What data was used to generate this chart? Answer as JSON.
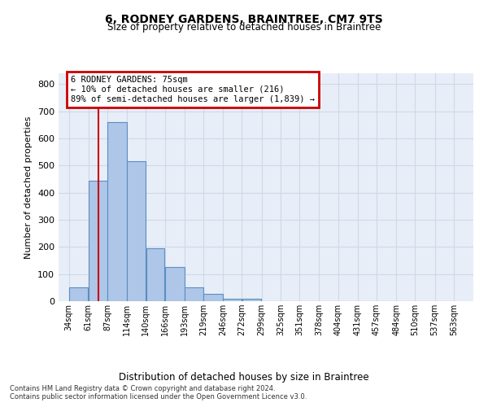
{
  "title_line1": "6, RODNEY GARDENS, BRAINTREE, CM7 9TS",
  "title_line2": "Size of property relative to detached houses in Braintree",
  "xlabel": "Distribution of detached houses by size in Braintree",
  "ylabel": "Number of detached properties",
  "bar_values": [
    50,
    445,
    660,
    515,
    195,
    125,
    50,
    27,
    10,
    8,
    0,
    0,
    0,
    0,
    0,
    0,
    0,
    0,
    0,
    0
  ],
  "bar_left_edges": [
    34,
    61,
    87,
    114,
    140,
    166,
    193,
    219,
    246,
    272,
    299,
    325,
    351,
    378,
    404,
    431,
    457,
    484,
    510,
    537
  ],
  "bar_widths": [
    27,
    26,
    27,
    26,
    26,
    27,
    26,
    27,
    26,
    27,
    26,
    26,
    27,
    26,
    27,
    26,
    27,
    26,
    27,
    26
  ],
  "xtick_labels": [
    "34sqm",
    "61sqm",
    "87sqm",
    "114sqm",
    "140sqm",
    "166sqm",
    "193sqm",
    "219sqm",
    "246sqm",
    "272sqm",
    "299sqm",
    "325sqm",
    "351sqm",
    "378sqm",
    "404sqm",
    "431sqm",
    "457sqm",
    "484sqm",
    "510sqm",
    "537sqm",
    "563sqm"
  ],
  "xtick_positions": [
    34,
    61,
    87,
    114,
    140,
    166,
    193,
    219,
    246,
    272,
    299,
    325,
    351,
    378,
    404,
    431,
    457,
    484,
    510,
    537,
    563
  ],
  "ylim": [
    0,
    840
  ],
  "xlim": [
    20,
    590
  ],
  "bar_color": "#aec6e8",
  "bar_edge_color": "#5a8fc2",
  "bar_edge_width": 0.8,
  "red_line_x": 75,
  "red_line_color": "#cc0000",
  "annotation_text": "6 RODNEY GARDENS: 75sqm\n← 10% of detached houses are smaller (216)\n89% of semi-detached houses are larger (1,839) →",
  "annotation_box_color": "#ffffff",
  "annotation_box_edge": "#cc0000",
  "grid_color": "#d0d8e8",
  "bg_color": "#e8eef8",
  "footer_line1": "Contains HM Land Registry data © Crown copyright and database right 2024.",
  "footer_line2": "Contains public sector information licensed under the Open Government Licence v3.0.",
  "yticks": [
    0,
    100,
    200,
    300,
    400,
    500,
    600,
    700,
    800
  ]
}
